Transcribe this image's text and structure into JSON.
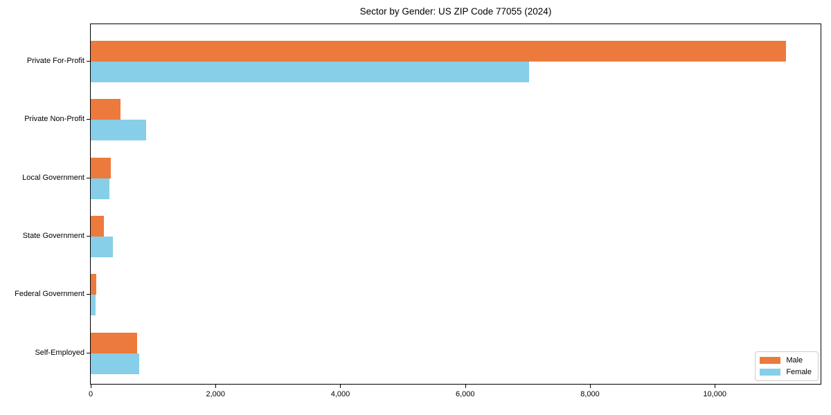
{
  "chart_data": {
    "type": "bar",
    "orientation": "horizontal",
    "title": "Sector by Gender: US ZIP Code 77055 (2024)",
    "categories": [
      "Private For-Profit",
      "Private Non-Profit",
      "Local Government",
      "State Government",
      "Federal Government",
      "Self-Employed"
    ],
    "series": [
      {
        "name": "Male",
        "color": "#EC7A3C",
        "values": [
          11140,
          480,
          320,
          210,
          90,
          740
        ]
      },
      {
        "name": "Female",
        "color": "#87CEE8",
        "values": [
          7020,
          885,
          300,
          360,
          80,
          775
        ]
      }
    ],
    "xlim": [
      0,
      11695
    ],
    "x_ticks": [
      0,
      2000,
      4000,
      6000,
      8000,
      10000
    ],
    "x_tick_labels": [
      "0",
      "2,000",
      "4,000",
      "6,000",
      "8,000",
      "10,000"
    ],
    "xlabel": "",
    "ylabel": "",
    "grid": false,
    "legend_position": "lower right",
    "spine_color": "#000000",
    "legend_border_color": "#cccccc",
    "background_color": "#ffffff"
  }
}
